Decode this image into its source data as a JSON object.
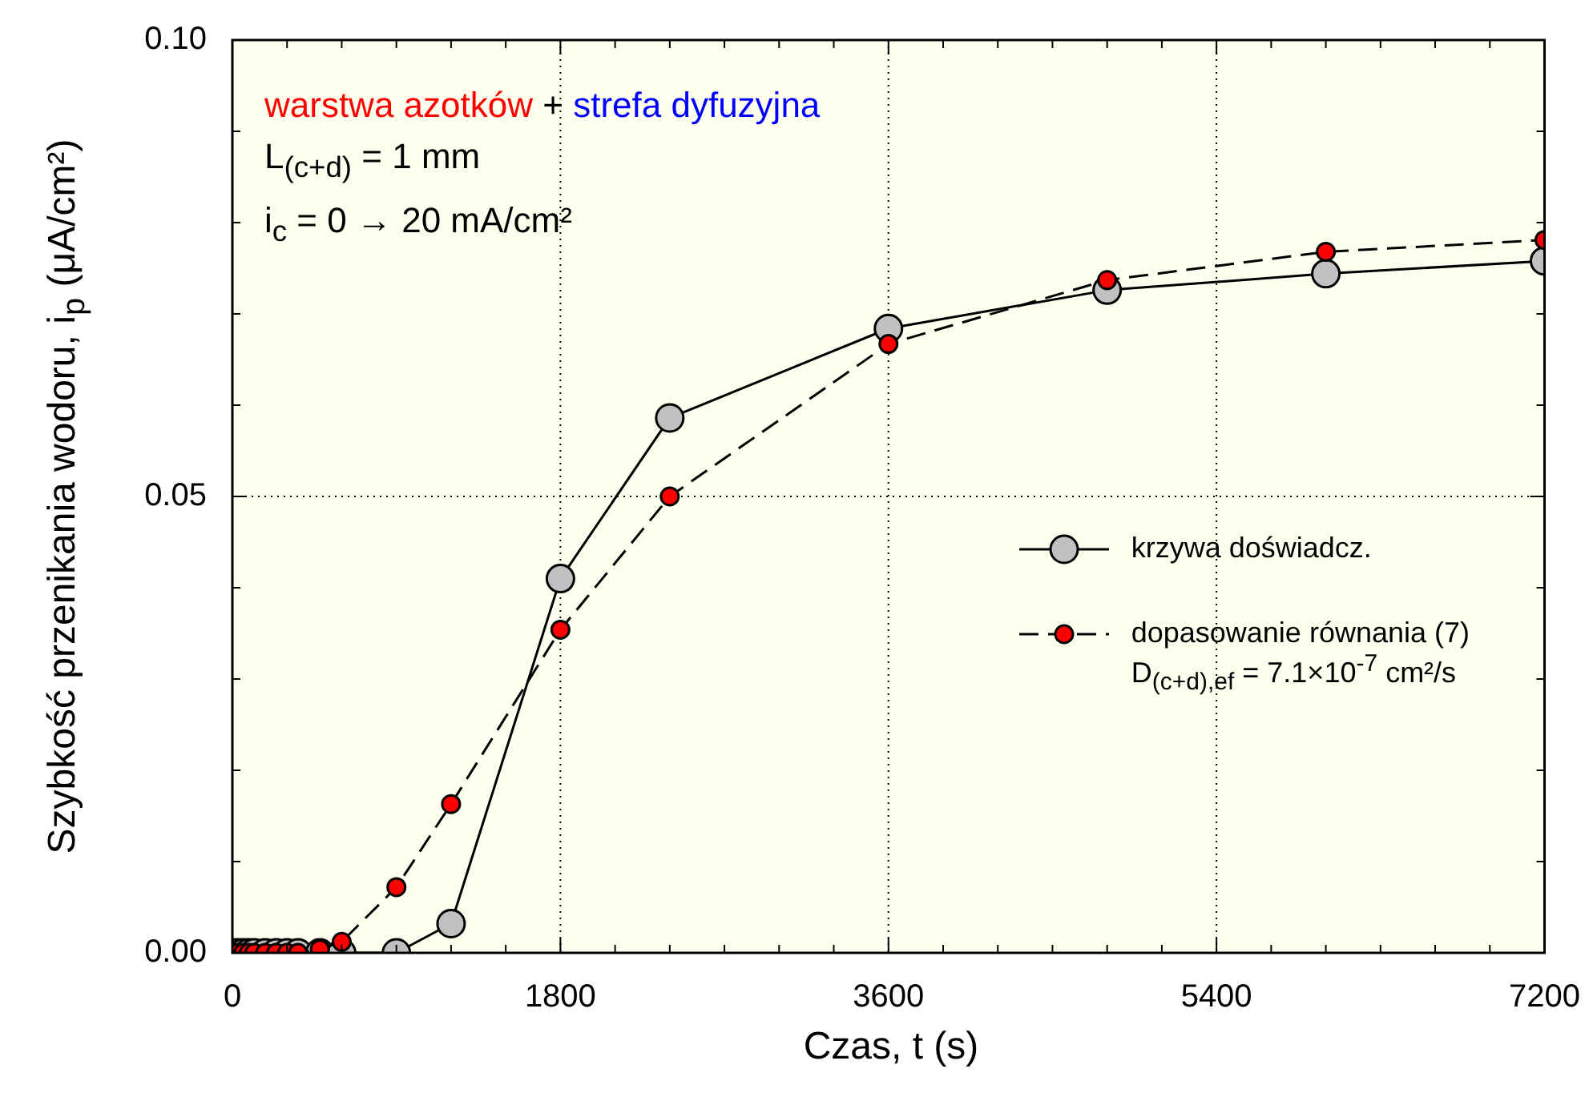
{
  "chart_data": {
    "type": "line",
    "xlabel": "Czas, t (s)",
    "ylabel": "Szybkość przenikania wodoru, i$_{p}$ (μA/cm²)",
    "xlim": [
      0,
      7200
    ],
    "ylim": [
      0,
      0.1
    ],
    "xticks": [
      0,
      {
        "value": 300,
        "label": null
      },
      {
        "value": 600,
        "label": null
      },
      {
        "value": 900,
        "label": null
      },
      {
        "value": 1200,
        "label": null
      },
      {
        "value": 1500,
        "label": null
      },
      1800,
      {
        "value": 2100,
        "label": null
      },
      {
        "value": 2400,
        "label": null
      },
      {
        "value": 2700,
        "label": null
      },
      {
        "value": 3000,
        "label": null
      },
      {
        "value": 3300,
        "label": null
      },
      3600,
      {
        "value": 3900,
        "label": null
      },
      {
        "value": 4200,
        "label": null
      },
      {
        "value": 4500,
        "label": null
      },
      {
        "value": 4800,
        "label": null
      },
      {
        "value": 5100,
        "label": null
      },
      5400,
      {
        "value": 5700,
        "label": null
      },
      {
        "value": 6000,
        "label": null
      },
      {
        "value": 6300,
        "label": null
      },
      {
        "value": 6600,
        "label": null
      },
      {
        "value": 6900,
        "label": null
      },
      7200
    ],
    "yticks": [
      {
        "value": 0,
        "label": "0.00"
      },
      {
        "value": 0.01,
        "label": null
      },
      {
        "value": 0.02,
        "label": null
      },
      {
        "value": 0.03,
        "label": null
      },
      {
        "value": 0.04,
        "label": null
      },
      0.05,
      {
        "value": 0.06,
        "label": null
      },
      {
        "value": 0.07,
        "label": null
      },
      {
        "value": 0.08,
        "label": null
      },
      {
        "value": 0.09,
        "label": null
      },
      {
        "value": 0.1,
        "label": "0.10"
      }
    ],
    "grid": true,
    "legend": "bottom right",
    "marker": "circle",
    "annotations": [
      "warstwa azotków",
      "+",
      "strefa dyfuzyjna",
      "L$_{(c+d)}$ = 1 mm",
      "i$_{c}$ = 0 → 20 mA/cm²",
      "D$_{(c+d),ef}$ = 7.1×10$^{-7}$ cm²/s"
    ],
    "series": [
      {
        "name": "krzywa doświadcz.",
        "color": "#c0c0c0",
        "line_style": "solid",
        "x": [
          0,
          30,
          60,
          90,
          120,
          180,
          240,
          300,
          360,
          480,
          600,
          900,
          1200,
          1800,
          2400,
          3600,
          4800,
          6000,
          7200
        ],
        "values": [
          0,
          0,
          0,
          0,
          0,
          0,
          0,
          0,
          0,
          0,
          0,
          0,
          0.0032,
          0.041,
          0.0586,
          0.0684,
          0.0726,
          0.0744,
          0.0758
        ]
      },
      {
        "name": "dopasowanie równania (7)",
        "color": "#ff0000",
        "line_style": "dashed",
        "x": [
          0,
          30,
          60,
          90,
          120,
          180,
          240,
          300,
          360,
          480,
          600,
          900,
          1200,
          1800,
          2400,
          3600,
          4800,
          6000,
          7200
        ],
        "values": [
          0,
          0,
          0,
          0,
          0,
          0,
          0,
          0,
          0,
          0.0004,
          0.0012,
          0.0072,
          0.0163,
          0.0354,
          0.05,
          0.0667,
          0.0737,
          0.0768,
          0.0781
        ]
      }
    ]
  }
}
